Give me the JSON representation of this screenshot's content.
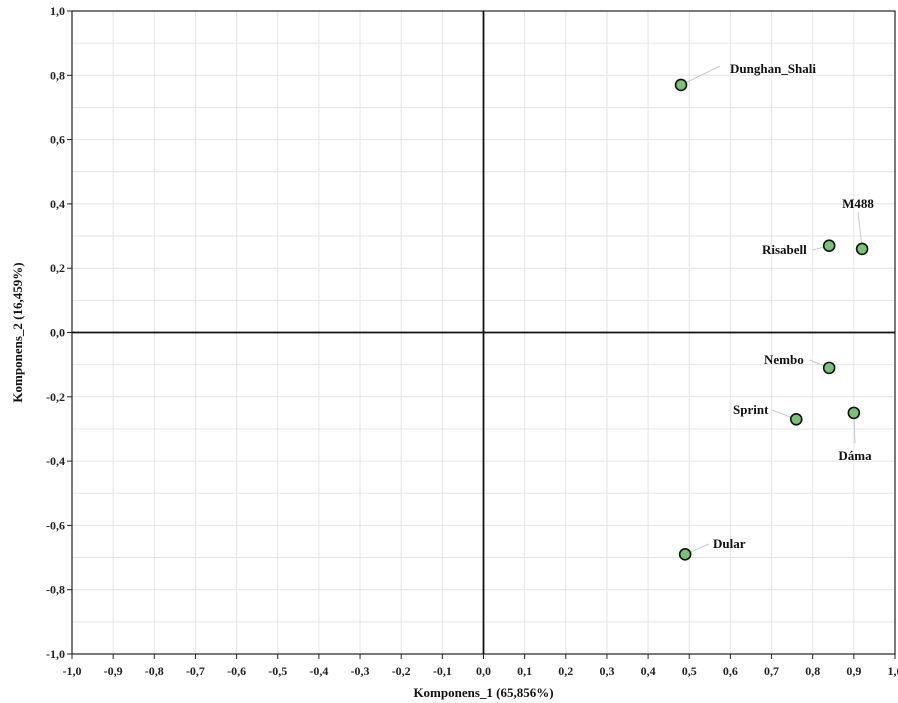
{
  "chart_data": {
    "type": "scatter",
    "title": "",
    "xlabel": "Komponens_1 (65,856%)",
    "ylabel": "Komponens_2 (16,459%)",
    "xlim": [
      -1.0,
      1.0
    ],
    "ylim": [
      -1.0,
      1.0
    ],
    "x_ticks": [
      "-1,0",
      "-0,9",
      "-0,8",
      "-0,7",
      "-0,6",
      "-0,5",
      "-0,4",
      "-0,3",
      "-0,2",
      "-0,1",
      "0,0",
      "0,1",
      "0,2",
      "0,3",
      "0,4",
      "0,5",
      "0,6",
      "0,7",
      "0,8",
      "0,9",
      "1,0"
    ],
    "y_ticks": [
      "1,0",
      "0,8",
      "0,6",
      "0,4",
      "0,2",
      "0,0",
      "-0,2",
      "-0,4",
      "-0,6",
      "-0,8",
      "-1,0"
    ],
    "grid": true,
    "point_color": "#7ac27a",
    "points": [
      {
        "label": "Dunghan_Shali",
        "x": 0.48,
        "y": 0.77
      },
      {
        "label": "M488",
        "x": 0.92,
        "y": 0.26
      },
      {
        "label": "Risabell",
        "x": 0.84,
        "y": 0.27
      },
      {
        "label": "Nembo",
        "x": 0.84,
        "y": -0.11
      },
      {
        "label": "Sprint",
        "x": 0.76,
        "y": -0.27
      },
      {
        "label": "Dáma",
        "x": 0.9,
        "y": -0.25
      },
      {
        "label": "Dular",
        "x": 0.49,
        "y": -0.69
      }
    ]
  }
}
